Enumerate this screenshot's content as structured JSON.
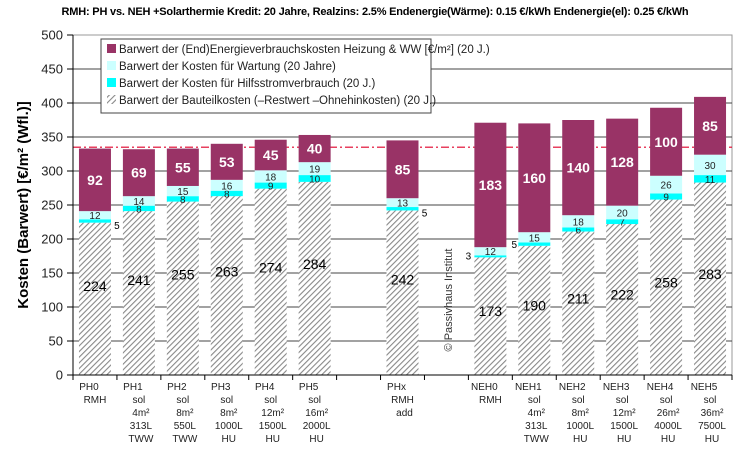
{
  "chart_data": {
    "type": "bar",
    "stacked": true,
    "title": "RMH: PH vs. NEH +Solarthermie Kredit: 20 Jahre,  Realzins: 2.5%  Endenergie(Wärme): 0.15 €/kWh  Endenergie(el): 0.25 €/kWh",
    "xlabel": "",
    "ylabel": "Kosten (Barwert)  [€/m² (Wfl.)]",
    "ylim": [
      0,
      500
    ],
    "yticks": [
      0,
      50,
      100,
      150,
      200,
      250,
      300,
      350,
      400,
      450,
      500
    ],
    "grid": true,
    "reference_line": 335,
    "watermark": "© Passivhaus Institut",
    "legend_position": "top-left",
    "categories": [
      [
        "PH0",
        "RMH"
      ],
      [
        "PH1",
        "sol",
        "4m²",
        "313L",
        "TWW"
      ],
      [
        "PH2",
        "sol",
        "8m²",
        "550L",
        "TWW"
      ],
      [
        "PH3",
        "sol",
        "8m²",
        "1000L",
        "HU"
      ],
      [
        "PH4",
        "sol",
        "12m²",
        "1500L",
        "HU"
      ],
      [
        "PH5",
        "sol",
        "16m²",
        "2000L",
        "HU"
      ],
      [],
      [
        "PHx",
        "RMH",
        "add"
      ],
      [],
      [
        "NEH0",
        "RMH"
      ],
      [
        "NEH1",
        "sol",
        "4m²",
        "313L",
        "TWW"
      ],
      [
        "NEH2",
        "sol",
        "8m²",
        "1000L",
        "HU"
      ],
      [
        "NEH3",
        "sol",
        "12m²",
        "1500L",
        "HU"
      ],
      [
        "NEH4",
        "sol",
        "26m²",
        "4000L",
        "HU"
      ],
      [
        "NEH5",
        "sol",
        "36m²",
        "7500L",
        "HU"
      ]
    ],
    "series": [
      {
        "name": "Barwert der Bauteilkosten (–Restwert –Ohnehinkosten)  (20 J.)",
        "color": "#c8c8c8",
        "pattern": "hatch",
        "values": [
          224,
          241,
          255,
          263,
          274,
          284,
          null,
          242,
          null,
          173,
          190,
          211,
          222,
          258,
          283
        ]
      },
      {
        "name": "Barwert der Kosten für  Hilfsstromverbrauch (20 J.)",
        "color": "#00ffff",
        "values": [
          5,
          8,
          8,
          8,
          9,
          10,
          null,
          5,
          null,
          3,
          5,
          6,
          7,
          9,
          11
        ]
      },
      {
        "name": "Barwert der Kosten für  Wartung (20 Jahre)",
        "color": "#ccffff",
        "values": [
          12,
          14,
          15,
          16,
          18,
          19,
          null,
          13,
          null,
          12,
          15,
          18,
          20,
          26,
          30
        ]
      },
      {
        "name": "Barwert der (End)Energieverbrauchskosten Heizung & WW   [€/m²]  (20 J.)",
        "color": "#993366",
        "values": [
          92,
          69,
          55,
          53,
          45,
          40,
          null,
          85,
          null,
          183,
          160,
          140,
          128,
          100,
          85
        ]
      }
    ],
    "legend_order": [
      3,
      2,
      1,
      0
    ]
  }
}
